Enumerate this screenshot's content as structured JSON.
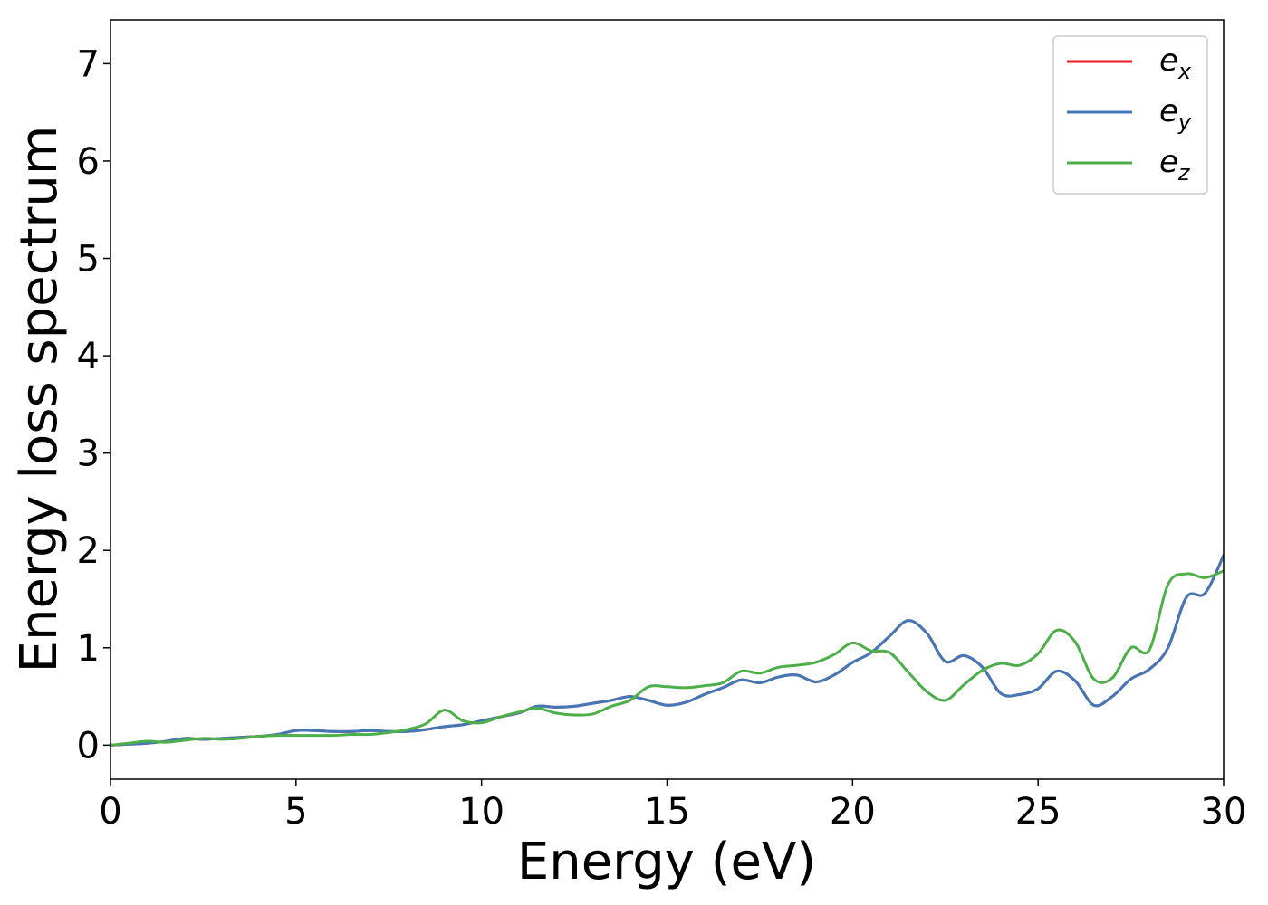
{
  "chart_data": {
    "type": "line",
    "title": "",
    "xlabel": "Energy (eV)",
    "ylabel": "Energy loss spectrum",
    "xlim": [
      0,
      30
    ],
    "ylim": [
      -0.35,
      7.45
    ],
    "xticks": [
      0,
      5,
      10,
      15,
      20,
      25,
      30
    ],
    "yticks": [
      0,
      1,
      2,
      3,
      4,
      5,
      6,
      7
    ],
    "grid": false,
    "legend_position": "top-right",
    "series": [
      {
        "name": "e_x",
        "label_base": "e",
        "label_sub": "x",
        "color": "#e41a1c",
        "x": [
          0,
          0.5,
          1,
          1.5,
          2,
          2.5,
          3,
          3.5,
          4,
          4.5,
          5,
          5.5,
          6,
          6.5,
          7,
          7.5,
          8,
          8.5,
          9,
          9.5,
          10,
          10.5,
          11,
          11.5,
          12,
          12.5,
          13,
          13.5,
          14,
          14.5,
          15,
          15.5,
          16,
          16.5,
          17,
          17.5,
          18,
          18.5,
          19,
          19.5,
          20,
          20.5,
          21,
          21.5,
          22,
          22.5,
          23,
          23.5,
          24,
          24.5,
          25,
          25.5,
          26,
          26.5,
          27,
          27.5,
          28,
          28.5,
          29,
          29.5,
          30
        ],
        "y": [
          0,
          0.01,
          0.02,
          0.04,
          0.07,
          0.06,
          0.07,
          0.08,
          0.09,
          0.11,
          0.15,
          0.15,
          0.14,
          0.14,
          0.15,
          0.14,
          0.14,
          0.16,
          0.19,
          0.21,
          0.25,
          0.29,
          0.33,
          0.4,
          0.39,
          0.4,
          0.43,
          0.46,
          0.5,
          0.46,
          0.41,
          0.44,
          0.52,
          0.59,
          0.67,
          0.64,
          0.7,
          0.72,
          0.65,
          0.72,
          0.85,
          0.95,
          1.12,
          1.28,
          1.15,
          0.86,
          0.92,
          0.8,
          0.53,
          0.52,
          0.58,
          0.76,
          0.66,
          0.41,
          0.5,
          0.68,
          0.78,
          1.0,
          1.52,
          1.56,
          1.95
        ]
      },
      {
        "name": "e_y",
        "label_base": "e",
        "label_sub": "y",
        "color": "#4378b8",
        "x": [
          0,
          0.5,
          1,
          1.5,
          2,
          2.5,
          3,
          3.5,
          4,
          4.5,
          5,
          5.5,
          6,
          6.5,
          7,
          7.5,
          8,
          8.5,
          9,
          9.5,
          10,
          10.5,
          11,
          11.5,
          12,
          12.5,
          13,
          13.5,
          14,
          14.5,
          15,
          15.5,
          16,
          16.5,
          17,
          17.5,
          18,
          18.5,
          19,
          19.5,
          20,
          20.5,
          21,
          21.5,
          22,
          22.5,
          23,
          23.5,
          24,
          24.5,
          25,
          25.5,
          26,
          26.5,
          27,
          27.5,
          28,
          28.5,
          29,
          29.5,
          30
        ],
        "y": [
          0,
          0.01,
          0.02,
          0.04,
          0.07,
          0.06,
          0.07,
          0.08,
          0.09,
          0.11,
          0.15,
          0.15,
          0.14,
          0.14,
          0.15,
          0.14,
          0.14,
          0.16,
          0.19,
          0.21,
          0.25,
          0.29,
          0.33,
          0.4,
          0.39,
          0.4,
          0.43,
          0.46,
          0.5,
          0.46,
          0.41,
          0.44,
          0.52,
          0.59,
          0.67,
          0.64,
          0.7,
          0.72,
          0.65,
          0.72,
          0.85,
          0.95,
          1.12,
          1.28,
          1.15,
          0.86,
          0.92,
          0.8,
          0.53,
          0.52,
          0.58,
          0.76,
          0.66,
          0.41,
          0.5,
          0.68,
          0.78,
          1.0,
          1.52,
          1.56,
          1.95
        ]
      },
      {
        "name": "e_z",
        "label_base": "e",
        "label_sub": "z",
        "color": "#4daf4a",
        "x": [
          0,
          0.5,
          1,
          1.5,
          2,
          2.5,
          3,
          3.5,
          4,
          4.5,
          5,
          5.5,
          6,
          6.5,
          7,
          7.5,
          8,
          8.5,
          9,
          9.5,
          10,
          10.5,
          11,
          11.5,
          12,
          12.5,
          13,
          13.5,
          14,
          14.5,
          15,
          15.5,
          16,
          16.5,
          17,
          17.5,
          18,
          18.5,
          19,
          19.5,
          20,
          20.5,
          21,
          21.5,
          22,
          22.5,
          23,
          23.5,
          24,
          24.5,
          25,
          25.5,
          26,
          26.5,
          27,
          27.5,
          28,
          28.5,
          29,
          29.5,
          30
        ],
        "y": [
          0,
          0.02,
          0.04,
          0.03,
          0.05,
          0.07,
          0.06,
          0.07,
          0.09,
          0.1,
          0.1,
          0.1,
          0.1,
          0.11,
          0.11,
          0.13,
          0.16,
          0.22,
          0.36,
          0.25,
          0.23,
          0.29,
          0.34,
          0.38,
          0.33,
          0.31,
          0.32,
          0.4,
          0.46,
          0.6,
          0.6,
          0.59,
          0.61,
          0.64,
          0.76,
          0.74,
          0.8,
          0.82,
          0.85,
          0.93,
          1.05,
          0.97,
          0.95,
          0.75,
          0.55,
          0.46,
          0.62,
          0.77,
          0.84,
          0.82,
          0.94,
          1.18,
          1.06,
          0.68,
          0.69,
          1.0,
          0.98,
          1.65,
          1.76,
          1.72,
          1.79
        ]
      }
    ]
  }
}
